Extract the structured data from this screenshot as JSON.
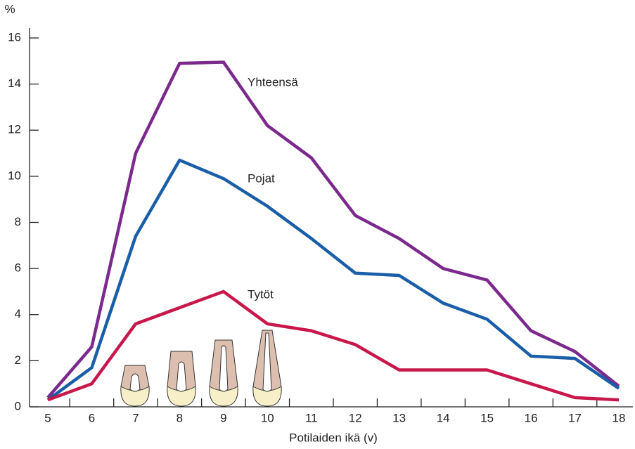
{
  "chart_data": {
    "type": "line",
    "y_label": "%",
    "x_label": "Potilaiden ikä (v)",
    "categories": [
      "5",
      "6",
      "7",
      "8",
      "9",
      "10",
      "11",
      "12",
      "13",
      "14",
      "15",
      "16",
      "17",
      "18"
    ],
    "series": [
      {
        "name": "Yhteensä",
        "color": "#7b2a8c",
        "values": [
          0.4,
          2.6,
          11.0,
          14.9,
          14.95,
          12.2,
          10.8,
          8.3,
          7.3,
          6.0,
          5.5,
          3.3,
          2.4,
          0.9
        ]
      },
      {
        "name": "Pojat",
        "color": "#1a5ea8",
        "values": [
          0.3,
          1.7,
          7.4,
          10.7,
          9.9,
          8.7,
          7.3,
          5.8,
          5.7,
          4.5,
          3.8,
          2.2,
          2.1,
          0.8
        ]
      },
      {
        "name": "Tytöt",
        "color": "#c8174b",
        "values": [
          0.3,
          1.0,
          3.6,
          4.3,
          5.0,
          3.6,
          3.3,
          2.7,
          1.6,
          1.6,
          1.6,
          1.0,
          0.4,
          0.3
        ]
      }
    ],
    "ylim": [
      0,
      16
    ],
    "yticks": [
      0,
      2,
      4,
      6,
      8,
      10,
      12,
      14,
      16
    ]
  }
}
